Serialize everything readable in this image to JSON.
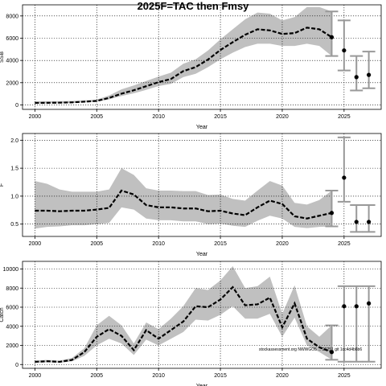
{
  "title": "2025F=TAC then Fmsy",
  "watermark": "stockassessment.org NWWGO5 ... 20251 git 1cc4d4b6b6",
  "colors": {
    "band": "#c0c0c0",
    "line": "#000000",
    "projection_bar": "#999999"
  },
  "chart_data": [
    {
      "type": "line",
      "title": "",
      "xlabel": "Year",
      "ylabel": "SSB",
      "xlim": [
        1999,
        2028
      ],
      "ylim": [
        -400,
        9000
      ],
      "xticks": [
        2000,
        2005,
        2010,
        2015,
        2020,
        2025
      ],
      "yticks": [
        0,
        2000,
        4000,
        6000,
        8000
      ],
      "grid": true,
      "x": [
        2000,
        2001,
        2002,
        2003,
        2004,
        2005,
        2006,
        2007,
        2008,
        2009,
        2010,
        2011,
        2012,
        2013,
        2014,
        2015,
        2016,
        2017,
        2018,
        2019,
        2020,
        2021,
        2022,
        2023,
        2024
      ],
      "series": [
        {
          "values": [
            180,
            190,
            200,
            230,
            290,
            360,
            630,
            1010,
            1320,
            1680,
            2050,
            2330,
            3040,
            3400,
            4080,
            4940,
            5640,
            6310,
            6800,
            6700,
            6380,
            6460,
            6950,
            6800,
            6090
          ]
        }
      ],
      "band_lower": [
        120,
        130,
        140,
        170,
        220,
        300,
        500,
        800,
        1050,
        1350,
        1700,
        1900,
        2500,
        2800,
        3400,
        4100,
        4700,
        5200,
        5500,
        5500,
        5300,
        5300,
        5500,
        5300,
        4400
      ],
      "band_upper": [
        330,
        330,
        340,
        360,
        410,
        480,
        850,
        1400,
        1750,
        2150,
        2550,
        2900,
        3700,
        4100,
        4900,
        5900,
        6800,
        7700,
        8300,
        8200,
        7600,
        7900,
        8800,
        8800,
        8400
      ],
      "projection": {
        "x": [
          2025,
          2026,
          2027
        ],
        "values": [
          4900,
          2500,
          2700
        ],
        "lower": [
          3100,
          1300,
          1500
        ],
        "upper": [
          7600,
          4400,
          4800
        ]
      },
      "last_point": {
        "x": 2024,
        "value": 6090
      }
    },
    {
      "type": "line",
      "title": "",
      "xlabel": "Year",
      "ylabel": "F",
      "xlim": [
        1999,
        2028
      ],
      "ylim": [
        0.28,
        2.12
      ],
      "xticks": [
        2000,
        2005,
        2010,
        2015,
        2020,
        2025
      ],
      "yticks": [
        0.5,
        1.0,
        1.5,
        2.0
      ],
      "grid": true,
      "x": [
        2000,
        2001,
        2002,
        2003,
        2004,
        2005,
        2006,
        2007,
        2008,
        2009,
        2010,
        2011,
        2012,
        2013,
        2014,
        2015,
        2016,
        2017,
        2018,
        2019,
        2020,
        2021,
        2022,
        2023,
        2024
      ],
      "series": [
        {
          "values": [
            0.74,
            0.74,
            0.73,
            0.74,
            0.74,
            0.76,
            0.79,
            1.1,
            1.03,
            0.84,
            0.8,
            0.8,
            0.78,
            0.78,
            0.73,
            0.74,
            0.69,
            0.66,
            0.8,
            0.92,
            0.86,
            0.64,
            0.6,
            0.65,
            0.7
          ]
        }
      ],
      "band_lower": [
        0.42,
        0.45,
        0.46,
        0.48,
        0.48,
        0.5,
        0.52,
        0.8,
        0.76,
        0.6,
        0.57,
        0.57,
        0.55,
        0.55,
        0.5,
        0.51,
        0.47,
        0.45,
        0.56,
        0.65,
        0.6,
        0.45,
        0.43,
        0.45,
        0.46
      ],
      "band_upper": [
        1.27,
        1.22,
        1.12,
        1.08,
        1.08,
        1.08,
        1.12,
        1.5,
        1.38,
        1.14,
        1.1,
        1.1,
        1.09,
        1.09,
        1.02,
        1.03,
        0.95,
        0.92,
        1.1,
        1.27,
        1.19,
        0.88,
        0.85,
        0.93,
        1.1
      ],
      "projection": {
        "x": [
          2025,
          2026,
          2027
        ],
        "values": [
          1.33,
          0.54,
          0.54
        ],
        "lower": [
          0.9,
          0.36,
          0.36
        ],
        "upper": [
          2.05,
          0.84,
          0.84
        ]
      },
      "last_point": {
        "x": 2024,
        "value": 0.7
      }
    },
    {
      "type": "line",
      "title": "",
      "xlabel": "Year",
      "ylabel": "Catch",
      "xlim": [
        1999,
        2028
      ],
      "ylim": [
        -400,
        10800
      ],
      "xticks": [
        2000,
        2005,
        2010,
        2015,
        2020,
        2025
      ],
      "yticks": [
        0,
        2000,
        4000,
        6000,
        8000,
        10000
      ],
      "grid": true,
      "x": [
        2000,
        2001,
        2002,
        2003,
        2004,
        2005,
        2006,
        2007,
        2008,
        2009,
        2010,
        2011,
        2012,
        2013,
        2014,
        2015,
        2016,
        2017,
        2018,
        2019,
        2020,
        2021,
        2022,
        2023,
        2024
      ],
      "series": [
        {
          "values": [
            280,
            340,
            280,
            480,
            1300,
            2900,
            3700,
            3000,
            1500,
            3600,
            2700,
            3600,
            4500,
            6100,
            6000,
            6800,
            8100,
            6200,
            6300,
            7000,
            3900,
            6400,
            2700,
            1800,
            1300
          ]
        }
      ],
      "band_lower": [
        180,
        230,
        190,
        330,
        900,
        2000,
        2700,
        2200,
        1000,
        2600,
        2000,
        2700,
        3400,
        4700,
        4600,
        5200,
        6100,
        4800,
        4800,
        5300,
        2900,
        4900,
        2000,
        1300,
        500
      ],
      "band_upper": [
        420,
        480,
        400,
        680,
        1700,
        4100,
        5100,
        4100,
        2200,
        4400,
        3700,
        4800,
        6100,
        8000,
        7800,
        8800,
        10300,
        8000,
        8200,
        9200,
        5300,
        8300,
        4000,
        2900,
        4100
      ],
      "projection": {
        "x": [
          2025,
          2026,
          2027
        ],
        "values": [
          6100,
          6100,
          6400
        ],
        "lower": [
          300,
          300,
          300
        ],
        "upper": [
          8200,
          8200,
          8200
        ]
      },
      "last_point": {
        "x": 2024,
        "value": 1300
      }
    }
  ]
}
